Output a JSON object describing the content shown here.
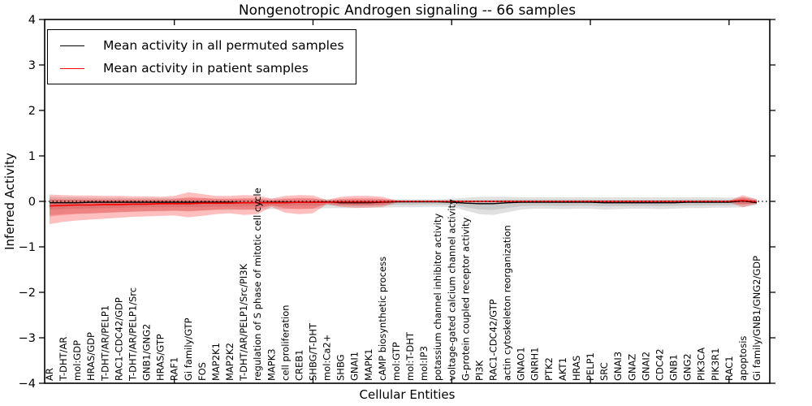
{
  "title": "Nongenotropic Androgen signaling -- 66 samples",
  "legend": {
    "items": [
      {
        "label": "Mean activity in all permuted samples",
        "color": "#000000"
      },
      {
        "label": "Mean activity in patient samples",
        "color": "#ff0000"
      }
    ]
  },
  "chart_data": {
    "type": "line",
    "title": "Nongenotropic Androgen signaling -- 66 samples",
    "xlabel": "Cellular Entities",
    "ylabel": "Inferred Activity",
    "ylim": [
      -4,
      4
    ],
    "yticks": [
      4,
      3,
      2,
      1,
      0,
      -1,
      -2,
      -3,
      -4
    ],
    "ytick_labels": [
      "4",
      "3",
      "2",
      "1",
      "0",
      "−1",
      "−2",
      "−3",
      "−4"
    ],
    "xtick_positions": [
      10,
      20,
      30,
      40,
      50
    ],
    "grid": false,
    "legend_position": "upper left",
    "zero_line_style": "dotted",
    "categories": [
      "AR",
      "T-DHT/AR",
      "mol:GDP",
      "HRAS/GDP",
      "T-DHT/AR/PELP1",
      "RAC1-CDC42/GDP",
      "T-DHT/AR/PELP1/Src",
      "GNB1/GNG2",
      "HRAS/GTP",
      "RAF1",
      "Gi family/GTP",
      "FOS",
      "MAP2K1",
      "MAP2K2",
      "T-DHT/AR/PELP1/Src/PI3K",
      "regulation of S phase of mitotic cell cycle",
      "MAPK3",
      "cell proliferation",
      "CREB1",
      "SHBG/T-DHT",
      "mol:Ca2+",
      "SHBG",
      "GNAI1",
      "MAPK1",
      "cAMP biosynthetic process",
      "mol:GTP",
      "mol:T-DHT",
      "mol:IP3",
      "potassium channel inhibitor activity",
      "voltage-gated calcium channel activity",
      "G-protein coupled receptor activity",
      "PI3K",
      "RAC1-CDC42/GTP",
      "actin cytoskeleton reorganization",
      "GNAO1",
      "GNRH1",
      "PTK2",
      "AKT1",
      "HRAS",
      "PELP1",
      "SRC",
      "GNAI3",
      "GNAZ",
      "GNAI2",
      "CDC42",
      "GNB1",
      "GNG2",
      "PIK3CA",
      "PIK3R1",
      "RAC1",
      "apoptosis",
      "Gi family/GNB1/GNG2/GDP"
    ],
    "series": [
      {
        "name": "Mean activity in all permuted samples",
        "color": "#000000",
        "band_color": "#000000",
        "values": [
          -0.03,
          -0.03,
          -0.03,
          -0.02,
          -0.02,
          -0.02,
          -0.02,
          -0.02,
          -0.02,
          -0.02,
          -0.02,
          -0.02,
          -0.02,
          -0.02,
          -0.03,
          -0.03,
          -0.02,
          -0.02,
          -0.02,
          -0.02,
          -0.01,
          -0.03,
          -0.03,
          -0.03,
          -0.02,
          -0.01,
          -0.01,
          -0.01,
          -0.01,
          -0.02,
          -0.04,
          -0.05,
          -0.05,
          -0.03,
          -0.02,
          -0.02,
          -0.02,
          -0.02,
          -0.02,
          -0.02,
          -0.03,
          -0.03,
          -0.03,
          -0.03,
          -0.03,
          -0.03,
          -0.02,
          -0.02,
          -0.02,
          -0.02,
          0.01,
          -0.03
        ],
        "band_lo": [
          -0.3,
          -0.28,
          -0.27,
          -0.26,
          -0.25,
          -0.24,
          -0.23,
          -0.22,
          -0.22,
          -0.21,
          -0.21,
          -0.2,
          -0.19,
          -0.19,
          -0.18,
          -0.18,
          -0.17,
          -0.17,
          -0.16,
          -0.16,
          -0.15,
          -0.15,
          -0.15,
          -0.14,
          -0.14,
          -0.13,
          -0.13,
          -0.12,
          -0.12,
          -0.12,
          -0.2,
          -0.28,
          -0.3,
          -0.24,
          -0.18,
          -0.16,
          -0.16,
          -0.17,
          -0.16,
          -0.16,
          -0.18,
          -0.17,
          -0.16,
          -0.16,
          -0.17,
          -0.16,
          -0.15,
          -0.15,
          -0.14,
          -0.14,
          -0.13,
          -0.08
        ],
        "band_hi": [
          0.1,
          0.09,
          0.09,
          0.08,
          0.08,
          0.08,
          0.07,
          0.07,
          0.07,
          0.07,
          0.07,
          0.07,
          0.06,
          0.06,
          0.06,
          0.06,
          0.06,
          0.06,
          0.06,
          0.06,
          0.05,
          0.05,
          0.05,
          0.05,
          0.05,
          0.05,
          0.05,
          0.05,
          0.05,
          0.06,
          0.08,
          0.1,
          0.1,
          0.1,
          0.09,
          0.09,
          0.09,
          0.09,
          0.09,
          0.09,
          0.09,
          0.09,
          0.09,
          0.09,
          0.09,
          0.09,
          0.09,
          0.09,
          0.09,
          0.08,
          0.09,
          0.06
        ]
      },
      {
        "name": "Mean activity in patient samples",
        "color": "#ff0000",
        "band_color": "#ff0000",
        "values": [
          -0.1,
          -0.09,
          -0.08,
          -0.08,
          -0.07,
          -0.07,
          -0.06,
          -0.06,
          -0.05,
          -0.05,
          -0.05,
          -0.04,
          -0.04,
          -0.04,
          -0.03,
          -0.03,
          -0.03,
          -0.03,
          -0.02,
          -0.02,
          -0.02,
          -0.01,
          -0.01,
          -0.01,
          -0.01,
          0,
          0,
          0,
          0,
          0,
          0,
          0,
          0,
          0,
          0,
          0,
          0,
          0,
          0,
          0,
          0,
          0,
          0,
          0,
          0,
          0,
          0,
          0,
          0,
          0,
          0.02,
          -0.01
        ],
        "band_lo": [
          -0.5,
          -0.45,
          -0.42,
          -0.4,
          -0.38,
          -0.36,
          -0.34,
          -0.33,
          -0.32,
          -0.31,
          -0.35,
          -0.32,
          -0.28,
          -0.26,
          -0.3,
          -0.28,
          -0.12,
          -0.25,
          -0.28,
          -0.26,
          -0.06,
          -0.12,
          -0.14,
          -0.14,
          -0.12,
          -0.03,
          -0.02,
          -0.02,
          -0.02,
          -0.02,
          -0.02,
          -0.02,
          -0.02,
          -0.02,
          -0.02,
          -0.02,
          -0.02,
          -0.02,
          -0.02,
          -0.02,
          -0.02,
          -0.02,
          -0.02,
          -0.02,
          -0.02,
          -0.02,
          -0.02,
          -0.02,
          -0.02,
          -0.02,
          -0.13,
          -0.05
        ],
        "band_hi": [
          0.15,
          0.14,
          0.13,
          0.13,
          0.12,
          0.12,
          0.11,
          0.11,
          0.1,
          0.12,
          0.2,
          0.16,
          0.12,
          0.12,
          0.14,
          0.13,
          0.06,
          0.12,
          0.14,
          0.13,
          0.03,
          0.1,
          0.12,
          0.12,
          0.1,
          0.02,
          0.01,
          0.01,
          0.01,
          0.01,
          0.01,
          0.01,
          0.01,
          0.01,
          0.01,
          0.01,
          0.01,
          0.01,
          0.01,
          0.01,
          0.01,
          0.01,
          0.01,
          0.01,
          0.01,
          0.01,
          0.01,
          0.01,
          0.01,
          0.01,
          0.14,
          0.04
        ]
      }
    ]
  }
}
